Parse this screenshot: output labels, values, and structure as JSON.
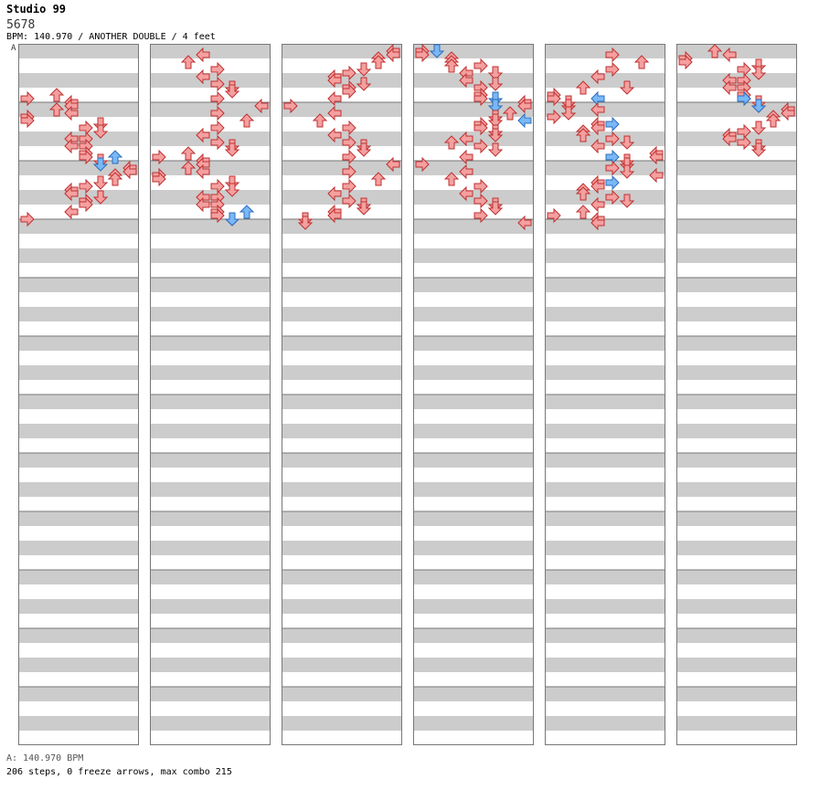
{
  "song": {
    "title": "Studio 99",
    "artist": "5678"
  },
  "chart_info": "BPM: 140.970 / ANOTHER DOUBLE / 4 feet",
  "bpm_marker_label": "A",
  "footer": {
    "bpm_line": "A: 140.970 BPM",
    "stats": "206 steps, 0 freeze arrows, max combo 215"
  },
  "colors": {
    "normal_arrow": "#f4a0a0",
    "normal_outline": "#c03030",
    "shock_arrow": "#7ab8f5",
    "shock_outline": "#2a6cc0",
    "stripe": "#cccccc"
  },
  "chart_data": {
    "type": "table",
    "title": "Studio 99 / ANOTHER DOUBLE",
    "columns": 6,
    "measures_per_column": 12,
    "lanes": [
      "1P-left",
      "1P-down",
      "1P-up",
      "1P-right",
      "2P-left",
      "2P-down",
      "2P-up",
      "2P-right"
    ],
    "note_format": "[column, beat_row_0_to_47, lane_0_to_7, type] where type n=normal s=shock; each beat row = 1/16 of a measure",
    "notes": [
      [
        0,
        12,
        2,
        "n"
      ],
      [
        0,
        13,
        0,
        "n"
      ],
      [
        0,
        14,
        3,
        "n"
      ],
      [
        0,
        15,
        3,
        "n"
      ],
      [
        0,
        16,
        2,
        "n"
      ],
      [
        0,
        17,
        3,
        "n"
      ],
      [
        0,
        18,
        0,
        "n"
      ],
      [
        0,
        19,
        0,
        "n"
      ],
      [
        0,
        20,
        5,
        "n"
      ],
      [
        0,
        21,
        4,
        "n"
      ],
      [
        0,
        22,
        5,
        "n"
      ],
      [
        0,
        24,
        3,
        "n"
      ],
      [
        0,
        24,
        4,
        "n"
      ],
      [
        0,
        26,
        3,
        "n"
      ],
      [
        0,
        26,
        4,
        "n"
      ],
      [
        0,
        28,
        4,
        "n"
      ],
      [
        0,
        29,
        4,
        "n"
      ],
      [
        0,
        29,
        6,
        "s"
      ],
      [
        0,
        30,
        5,
        "n"
      ],
      [
        0,
        31,
        5,
        "s"
      ],
      [
        0,
        32,
        7,
        "n"
      ],
      [
        0,
        33,
        7,
        "n"
      ],
      [
        0,
        34,
        6,
        "n"
      ],
      [
        0,
        35,
        6,
        "n"
      ],
      [
        0,
        36,
        5,
        "n"
      ],
      [
        0,
        37,
        4,
        "n"
      ],
      [
        0,
        38,
        3,
        "n"
      ],
      [
        0,
        39,
        3,
        "n"
      ],
      [
        0,
        40,
        5,
        "n"
      ],
      [
        0,
        41,
        4,
        "n"
      ],
      [
        0,
        42,
        4,
        "n"
      ],
      [
        0,
        44,
        3,
        "n"
      ],
      [
        0,
        46,
        0,
        "n"
      ],
      [
        1,
        1,
        3,
        "n"
      ],
      [
        1,
        3,
        2,
        "n"
      ],
      [
        1,
        5,
        4,
        "n"
      ],
      [
        1,
        7,
        3,
        "n"
      ],
      [
        1,
        9,
        4,
        "n"
      ],
      [
        1,
        10,
        5,
        "n"
      ],
      [
        1,
        11,
        5,
        "n"
      ],
      [
        1,
        13,
        4,
        "n"
      ],
      [
        1,
        15,
        7,
        "n"
      ],
      [
        1,
        17,
        4,
        "n"
      ],
      [
        1,
        19,
        6,
        "n"
      ],
      [
        1,
        21,
        4,
        "n"
      ],
      [
        1,
        23,
        3,
        "n"
      ],
      [
        1,
        25,
        4,
        "n"
      ],
      [
        1,
        26,
        5,
        "n"
      ],
      [
        1,
        27,
        5,
        "n"
      ],
      [
        1,
        28,
        2,
        "n"
      ],
      [
        1,
        29,
        0,
        "n"
      ],
      [
        1,
        30,
        3,
        "n"
      ],
      [
        1,
        31,
        3,
        "n"
      ],
      [
        1,
        32,
        2,
        "n"
      ],
      [
        1,
        33,
        3,
        "n"
      ],
      [
        1,
        34,
        0,
        "n"
      ],
      [
        1,
        35,
        0,
        "n"
      ],
      [
        1,
        36,
        5,
        "n"
      ],
      [
        1,
        37,
        4,
        "n"
      ],
      [
        1,
        38,
        5,
        "n"
      ],
      [
        1,
        40,
        3,
        "n"
      ],
      [
        1,
        40,
        4,
        "n"
      ],
      [
        1,
        42,
        3,
        "n"
      ],
      [
        1,
        42,
        4,
        "n"
      ],
      [
        1,
        44,
        4,
        "n"
      ],
      [
        1,
        44,
        6,
        "s"
      ],
      [
        1,
        45,
        4,
        "n"
      ],
      [
        1,
        46,
        5,
        "n"
      ],
      [
        1,
        46,
        5,
        "s"
      ],
      [
        2,
        0,
        7,
        "n"
      ],
      [
        2,
        1,
        7,
        "n"
      ],
      [
        2,
        2,
        6,
        "n"
      ],
      [
        2,
        3,
        6,
        "n"
      ],
      [
        2,
        5,
        5,
        "n"
      ],
      [
        2,
        6,
        4,
        "n"
      ],
      [
        2,
        7,
        3,
        "n"
      ],
      [
        2,
        8,
        3,
        "n"
      ],
      [
        2,
        9,
        5,
        "n"
      ],
      [
        2,
        10,
        4,
        "n"
      ],
      [
        2,
        11,
        4,
        "n"
      ],
      [
        2,
        13,
        3,
        "n"
      ],
      [
        2,
        15,
        0,
        "n"
      ],
      [
        2,
        17,
        3,
        "n"
      ],
      [
        2,
        19,
        2,
        "n"
      ],
      [
        2,
        21,
        4,
        "n"
      ],
      [
        2,
        23,
        3,
        "n"
      ],
      [
        2,
        25,
        4,
        "n"
      ],
      [
        2,
        26,
        5,
        "n"
      ],
      [
        2,
        27,
        5,
        "n"
      ],
      [
        2,
        29,
        4,
        "n"
      ],
      [
        2,
        31,
        7,
        "n"
      ],
      [
        2,
        33,
        4,
        "n"
      ],
      [
        2,
        35,
        6,
        "n"
      ],
      [
        2,
        37,
        4,
        "n"
      ],
      [
        2,
        39,
        3,
        "n"
      ],
      [
        2,
        41,
        4,
        "n"
      ],
      [
        2,
        42,
        5,
        "n"
      ],
      [
        2,
        43,
        5,
        "n"
      ],
      [
        2,
        44,
        3,
        "n"
      ],
      [
        2,
        45,
        3,
        "n"
      ],
      [
        2,
        46,
        1,
        "n"
      ],
      [
        2,
        47,
        1,
        "n"
      ],
      [
        3,
        0,
        0,
        "n"
      ],
      [
        3,
        0,
        1,
        "s"
      ],
      [
        3,
        1,
        0,
        "n"
      ],
      [
        3,
        2,
        2,
        "n"
      ],
      [
        3,
        3,
        2,
        "n"
      ],
      [
        3,
        4,
        2,
        "n"
      ],
      [
        3,
        4,
        4,
        "n"
      ],
      [
        3,
        6,
        3,
        "n"
      ],
      [
        3,
        6,
        5,
        "n"
      ],
      [
        3,
        8,
        3,
        "n"
      ],
      [
        3,
        9,
        5,
        "n"
      ],
      [
        3,
        10,
        4,
        "n"
      ],
      [
        3,
        12,
        4,
        "n"
      ],
      [
        3,
        13,
        4,
        "n"
      ],
      [
        3,
        13,
        5,
        "s"
      ],
      [
        3,
        14,
        7,
        "n"
      ],
      [
        3,
        15,
        5,
        "s"
      ],
      [
        3,
        15,
        7,
        "n"
      ],
      [
        3,
        17,
        6,
        "n"
      ],
      [
        3,
        18,
        5,
        "n"
      ],
      [
        3,
        19,
        5,
        "n"
      ],
      [
        3,
        19,
        7,
        "s"
      ],
      [
        3,
        20,
        4,
        "n"
      ],
      [
        3,
        21,
        4,
        "n"
      ],
      [
        3,
        22,
        5,
        "n"
      ],
      [
        3,
        23,
        5,
        "n"
      ],
      [
        3,
        24,
        3,
        "n"
      ],
      [
        3,
        25,
        2,
        "n"
      ],
      [
        3,
        26,
        4,
        "n"
      ],
      [
        3,
        27,
        5,
        "n"
      ],
      [
        3,
        29,
        3,
        "n"
      ],
      [
        3,
        31,
        0,
        "n"
      ],
      [
        3,
        33,
        3,
        "n"
      ],
      [
        3,
        35,
        2,
        "n"
      ],
      [
        3,
        37,
        4,
        "n"
      ],
      [
        3,
        39,
        3,
        "n"
      ],
      [
        3,
        41,
        4,
        "n"
      ],
      [
        3,
        42,
        5,
        "n"
      ],
      [
        3,
        43,
        5,
        "n"
      ],
      [
        3,
        45,
        4,
        "n"
      ],
      [
        3,
        47,
        7,
        "n"
      ],
      [
        4,
        1,
        4,
        "n"
      ],
      [
        4,
        3,
        6,
        "n"
      ],
      [
        4,
        5,
        4,
        "n"
      ],
      [
        4,
        7,
        3,
        "n"
      ],
      [
        4,
        10,
        2,
        "n"
      ],
      [
        4,
        10,
        5,
        "n"
      ],
      [
        4,
        12,
        0,
        "n"
      ],
      [
        4,
        13,
        0,
        "n"
      ],
      [
        4,
        13,
        3,
        "s"
      ],
      [
        4,
        14,
        1,
        "n"
      ],
      [
        4,
        15,
        1,
        "n"
      ],
      [
        4,
        16,
        3,
        "n"
      ],
      [
        4,
        17,
        1,
        "n"
      ],
      [
        4,
        18,
        0,
        "n"
      ],
      [
        4,
        20,
        3,
        "n"
      ],
      [
        4,
        20,
        4,
        "s"
      ],
      [
        4,
        21,
        3,
        "n"
      ],
      [
        4,
        22,
        2,
        "n"
      ],
      [
        4,
        23,
        2,
        "n"
      ],
      [
        4,
        24,
        4,
        "n"
      ],
      [
        4,
        25,
        5,
        "n"
      ],
      [
        4,
        26,
        3,
        "n"
      ],
      [
        4,
        28,
        7,
        "n"
      ],
      [
        4,
        29,
        4,
        "s"
      ],
      [
        4,
        29,
        7,
        "n"
      ],
      [
        4,
        30,
        5,
        "n"
      ],
      [
        4,
        31,
        5,
        "n"
      ],
      [
        4,
        32,
        4,
        "n"
      ],
      [
        4,
        33,
        5,
        "n"
      ],
      [
        4,
        34,
        7,
        "n"
      ],
      [
        4,
        36,
        3,
        "n"
      ],
      [
        4,
        36,
        4,
        "s"
      ],
      [
        4,
        37,
        3,
        "n"
      ],
      [
        4,
        38,
        2,
        "n"
      ],
      [
        4,
        39,
        2,
        "n"
      ],
      [
        4,
        40,
        4,
        "n"
      ],
      [
        4,
        41,
        5,
        "n"
      ],
      [
        4,
        42,
        3,
        "n"
      ],
      [
        4,
        44,
        2,
        "n"
      ],
      [
        4,
        45,
        0,
        "n"
      ],
      [
        4,
        46,
        3,
        "n"
      ],
      [
        4,
        47,
        3,
        "n"
      ],
      [
        5,
        0,
        2,
        "n"
      ],
      [
        5,
        1,
        3,
        "n"
      ],
      [
        5,
        2,
        0,
        "n"
      ],
      [
        5,
        3,
        0,
        "n"
      ],
      [
        5,
        4,
        5,
        "n"
      ],
      [
        5,
        5,
        4,
        "n"
      ],
      [
        5,
        6,
        5,
        "n"
      ],
      [
        5,
        8,
        3,
        "n"
      ],
      [
        5,
        8,
        4,
        "n"
      ],
      [
        5,
        10,
        3,
        "n"
      ],
      [
        5,
        10,
        4,
        "n"
      ],
      [
        5,
        12,
        4,
        "n"
      ],
      [
        5,
        13,
        4,
        "n"
      ],
      [
        5,
        13,
        4,
        "s"
      ],
      [
        5,
        14,
        5,
        "n"
      ],
      [
        5,
        15,
        5,
        "n"
      ],
      [
        5,
        15,
        5,
        "s"
      ],
      [
        5,
        16,
        7,
        "n"
      ],
      [
        5,
        17,
        7,
        "n"
      ],
      [
        5,
        18,
        6,
        "n"
      ],
      [
        5,
        19,
        6,
        "n"
      ],
      [
        5,
        21,
        5,
        "n"
      ],
      [
        5,
        22,
        4,
        "n"
      ],
      [
        5,
        23,
        3,
        "n"
      ],
      [
        5,
        24,
        3,
        "n"
      ],
      [
        5,
        25,
        4,
        "n"
      ],
      [
        5,
        26,
        5,
        "n"
      ],
      [
        5,
        27,
        5,
        "n"
      ]
    ]
  }
}
